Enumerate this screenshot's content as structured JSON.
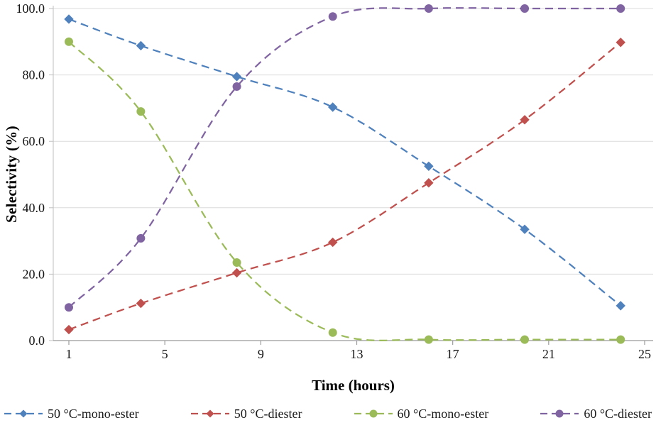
{
  "chart_data": {
    "type": "line",
    "x": [
      1,
      4,
      8,
      12,
      16,
      20,
      24
    ],
    "series": [
      {
        "name": "50 °C-mono-ester",
        "color": "#4F81BD",
        "marker": "diamond",
        "values": [
          96.8,
          88.8,
          79.5,
          70.3,
          52.5,
          33.5,
          10.5
        ]
      },
      {
        "name": "50 °C-diester",
        "color": "#C0504D",
        "marker": "diamond",
        "values": [
          3.3,
          11.2,
          20.4,
          29.6,
          47.5,
          66.5,
          89.8
        ]
      },
      {
        "name": "60 °C-mono-ester",
        "color": "#9BBB59",
        "marker": "circle",
        "values": [
          90.0,
          69.0,
          23.5,
          2.4,
          0.3,
          0.3,
          0.3
        ]
      },
      {
        "name": "60 °C-diester",
        "color": "#8064A2",
        "marker": "circle",
        "values": [
          10.0,
          30.8,
          76.5,
          97.6,
          100.0,
          100.0,
          100.0
        ]
      }
    ],
    "xlabel": "Time (hours)",
    "ylabel": "Selectivity (%)",
    "xlim": [
      1,
      25
    ],
    "xticks": [
      1,
      5,
      9,
      13,
      17,
      21,
      25
    ],
    "ylim": [
      0,
      100
    ],
    "yticks": [
      0,
      20,
      40,
      60,
      80,
      100
    ],
    "ytick_labels": [
      "0.0",
      "20.0",
      "40.0",
      "60.0",
      "80.0",
      "100.0"
    ],
    "grid": "horizontal",
    "legend_position": "bottom",
    "line_style": "dashed"
  }
}
